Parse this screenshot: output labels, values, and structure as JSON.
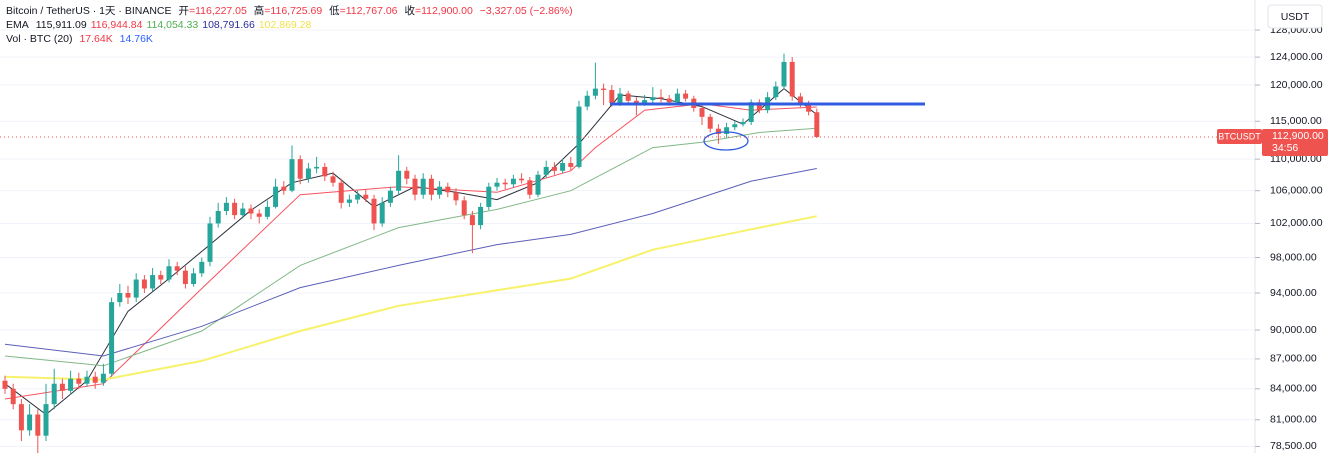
{
  "header": {
    "title": "Bitcoin / TetherUS · 1天 · BINANCE",
    "fields": [
      {
        "label": "开",
        "value": "=116,227.05"
      },
      {
        "label": "高",
        "value": "=116,725.69"
      },
      {
        "label": "低",
        "value": "=112,767.06"
      },
      {
        "label": "收",
        "value": "=112,900.00"
      }
    ],
    "change": "−3,327.05 (−2.86%)",
    "ema_label": "EMA",
    "vol_label": "Vol · BTC (20)",
    "vol_values": [
      "17.64K",
      "14.76K"
    ],
    "currency": "USDT",
    "symbol_tag": "BTCUSDT",
    "last_price_label": "112,900.00",
    "countdown": "34:56"
  },
  "chart_data": {
    "type": "candlestick",
    "log_scale": true,
    "grid": true,
    "up_color": "#26a69a",
    "down_color": "#ef5350",
    "ylim": [
      77900,
      132600
    ],
    "yticks": [
      {
        "value": 78500,
        "label": "78,500.00"
      },
      {
        "value": 81000,
        "label": "81,000.00"
      },
      {
        "value": 84000,
        "label": "84,000.00"
      },
      {
        "value": 87000,
        "label": "87,000.00"
      },
      {
        "value": 90000,
        "label": "90,000.00"
      },
      {
        "value": 94000,
        "label": "94,000.00"
      },
      {
        "value": 98000,
        "label": "98,000.00"
      },
      {
        "value": 102000,
        "label": "102,000.00"
      },
      {
        "value": 106000,
        "label": "106,000.00"
      },
      {
        "value": 110000,
        "label": "110,000.00"
      },
      {
        "value": 115000,
        "label": "115,000.00"
      },
      {
        "value": 120000,
        "label": "120,000.00"
      },
      {
        "value": 124000,
        "label": "124,000.00"
      },
      {
        "value": 128000,
        "label": "128,000.00"
      }
    ],
    "open": [
      84800,
      84000,
      82500,
      80000,
      81500,
      79500,
      82500,
      84500,
      83800,
      85000,
      84500,
      85200,
      84600,
      85500,
      93000,
      94000,
      93500,
      95500,
      94500,
      96000,
      95500,
      97000,
      96500,
      95000,
      96200,
      97500,
      102000,
      103500,
      104500,
      103000,
      103800,
      103200,
      102800,
      104000,
      106500,
      106000,
      110000,
      107500,
      108800,
      109000,
      107800,
      107000,
      104500,
      104900,
      105500,
      105000,
      102000,
      104500,
      106000,
      108500,
      107500,
      105500,
      107500,
      105500,
      106500,
      105800,
      104800,
      103000,
      101800,
      104000,
      106500,
      107000,
      106800,
      107500,
      107300,
      105500,
      108000,
      109000,
      108500,
      109500,
      109000,
      117000,
      118500,
      119500,
      119300,
      117500,
      118800,
      117800,
      117500,
      117900,
      118300,
      118100,
      117600,
      118800,
      118100,
      116800,
      115600,
      114000,
      113300,
      114200,
      114600,
      114900,
      117600,
      116500,
      118300,
      119800,
      123300,
      118400,
      117400,
      116227.05
    ],
    "high": [
      85300,
      84500,
      83000,
      82500,
      82000,
      84500,
      86000,
      85000,
      85800,
      85600,
      85800,
      85700,
      86500,
      93500,
      95000,
      94800,
      96200,
      96000,
      96800,
      96500,
      97800,
      97500,
      97000,
      96800,
      98000,
      102800,
      104500,
      105200,
      105000,
      104500,
      104300,
      103700,
      104800,
      107500,
      107200,
      111800,
      110500,
      109500,
      110300,
      109500,
      108400,
      107500,
      105500,
      106000,
      106200,
      105500,
      105200,
      106500,
      110500,
      109000,
      108000,
      108200,
      108000,
      107200,
      107000,
      106300,
      105300,
      103500,
      104500,
      107000,
      107600,
      107500,
      108000,
      108200,
      107700,
      108500,
      109800,
      109600,
      110000,
      110300,
      117800,
      119200,
      123200,
      120200,
      120000,
      119600,
      119200,
      118300,
      118600,
      119700,
      119400,
      118600,
      119500,
      119300,
      118500,
      117200,
      116000,
      114600,
      114800,
      115000,
      115400,
      118000,
      118000,
      119000,
      120500,
      124500,
      124000,
      118900,
      117800,
      116725.69
    ],
    "low": [
      83500,
      82000,
      79000,
      79500,
      77800,
      79000,
      82000,
      83000,
      83400,
      84000,
      84200,
      84000,
      84300,
      85200,
      92500,
      92800,
      93000,
      94000,
      94200,
      95000,
      95200,
      96000,
      94500,
      94700,
      95800,
      97000,
      101500,
      103000,
      102500,
      102600,
      102500,
      102000,
      102500,
      103800,
      105500,
      105800,
      106800,
      107000,
      108200,
      107200,
      106500,
      103800,
      104000,
      104400,
      104600,
      101200,
      101600,
      104000,
      105500,
      106800,
      104800,
      105000,
      104800,
      105000,
      105200,
      104200,
      102500,
      98500,
      101300,
      103600,
      106000,
      106200,
      106400,
      106900,
      105000,
      105200,
      107600,
      108000,
      108200,
      108600,
      108800,
      116500,
      118000,
      117200,
      117000,
      117100,
      117300,
      115800,
      117100,
      117500,
      117600,
      117100,
      117300,
      117700,
      116300,
      114500,
      113500,
      112000,
      112800,
      113800,
      114300,
      114500,
      116100,
      116100,
      117900,
      119400,
      117800,
      116900,
      115800,
      112767.06
    ],
    "close": [
      84000,
      82500,
      80000,
      81500,
      79500,
      82500,
      84500,
      83800,
      85000,
      84500,
      85200,
      84600,
      85500,
      93000,
      94000,
      93500,
      95500,
      94500,
      96000,
      95500,
      97000,
      96500,
      95000,
      96200,
      97500,
      102000,
      103500,
      104500,
      103000,
      103800,
      103200,
      102800,
      104000,
      106500,
      106000,
      110000,
      107500,
      108800,
      109000,
      107800,
      107000,
      104500,
      104900,
      105500,
      105000,
      102000,
      104500,
      106000,
      108500,
      107500,
      105500,
      107500,
      105500,
      106500,
      105800,
      104800,
      103000,
      101800,
      104000,
      106500,
      107000,
      106800,
      107500,
      107300,
      105500,
      108000,
      109000,
      108500,
      109500,
      109000,
      117000,
      118500,
      119500,
      119300,
      117500,
      118800,
      117800,
      117500,
      117900,
      118300,
      118100,
      117600,
      118800,
      118100,
      116800,
      115600,
      114000,
      113300,
      114200,
      114600,
      114900,
      117600,
      116500,
      118300,
      119800,
      123300,
      118400,
      117400,
      116300,
      112900
    ],
    "lines": [
      {
        "color": "#2a2e39",
        "label_color": "#131722",
        "value_label": "115,911.09",
        "x": [
          0,
          5,
          10,
          15,
          20,
          25,
          30,
          35,
          40,
          45,
          50,
          55,
          60,
          65,
          70,
          75,
          80,
          85,
          90,
          95,
          99
        ],
        "values": [
          84500,
          81500,
          84800,
          92000,
          95600,
          99500,
          103600,
          107000,
          108200,
          104000,
          106500,
          105800,
          104900,
          107000,
          112000,
          118600,
          118100,
          117000,
          114600,
          119500,
          115911.09
        ]
      },
      {
        "color": "#f7525f",
        "label_color": "#f23645",
        "value_label": "116,944.84",
        "x": [
          0,
          12,
          24,
          36,
          48,
          60,
          69,
          72,
          78,
          85,
          91,
          99
        ],
        "values": [
          83000,
          84500,
          94500,
          105500,
          106500,
          105800,
          108500,
          111500,
          116500,
          117400,
          116500,
          116944.84
        ]
      },
      {
        "color": "#81b886",
        "label_color": "#4caf50",
        "value_label": "114,054.33",
        "x": [
          0,
          12,
          24,
          36,
          48,
          60,
          69,
          79,
          85,
          92,
          99
        ],
        "values": [
          87300,
          86300,
          89900,
          97100,
          101500,
          103700,
          106000,
          111500,
          112200,
          113500,
          114054.33
        ]
      },
      {
        "color": "#5b5fb8",
        "label_color": "#2a2e9f",
        "value_label": "108,791.66",
        "x": [
          0,
          12,
          24,
          36,
          48,
          60,
          69,
          79,
          91,
          99
        ],
        "values": [
          88500,
          87300,
          90400,
          94600,
          97100,
          99500,
          100700,
          103200,
          107200,
          108791.66
        ]
      },
      {
        "color": "#f7f26b",
        "label_color": "#f2e14a",
        "value_label": "102,869.28",
        "x": [
          0,
          12,
          24,
          36,
          48,
          60,
          69,
          79,
          91,
          99
        ],
        "values": [
          85200,
          84900,
          86800,
          89900,
          92600,
          94300,
          95600,
          98900,
          101300,
          102869.28
        ]
      }
    ]
  }
}
